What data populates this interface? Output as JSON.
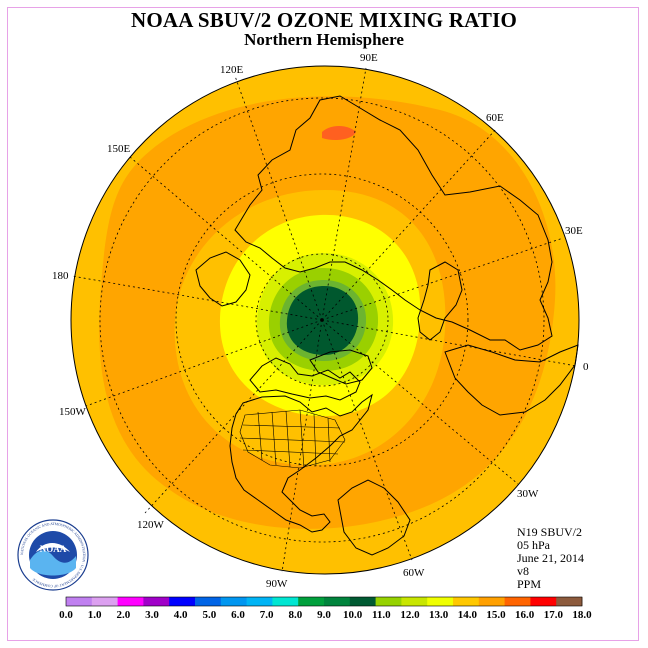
{
  "title": "NOAA SBUV/2 OZONE MIXING RATIO",
  "subtitle": "Northern Hemisphere",
  "info": {
    "instrument": "N19 SBUV/2",
    "pressure": "05 hPa",
    "date": "June 21, 2014",
    "version": "v8",
    "units": "PPM"
  },
  "longitude_labels": {
    "e90": "90E",
    "e60": "60E",
    "e30": "30E",
    "zero": "0",
    "w30": "30W",
    "w60": "60W",
    "w90": "90W",
    "w120": "120W",
    "w150": "150W",
    "l180": "180",
    "e150": "150E",
    "e120": "120E"
  },
  "logo": {
    "text": "NOAA",
    "ring_text": "NATIONAL OCEANIC AND ATMOSPHERIC ADMINISTRATION · U.S. DEPARTMENT OF COMMERCE"
  },
  "colorbar": {
    "colors": [
      "#c080f0",
      "#dca0f0",
      "#ff00ff",
      "#a000c8",
      "#0000ff",
      "#0064e6",
      "#0096f0",
      "#00b4f5",
      "#00e6d2",
      "#00a03c",
      "#00843c",
      "#005a32",
      "#96d200",
      "#c8e600",
      "#f0ff00",
      "#ffc800",
      "#ffa000",
      "#ff6400",
      "#ff0000",
      "#8c5a3c"
    ],
    "ticks": [
      "0.0",
      "1.0",
      "2.0",
      "3.0",
      "4.0",
      "5.0",
      "6.0",
      "7.0",
      "8.0",
      "9.0",
      "10.0",
      "11.0",
      "12.0",
      "13.0",
      "14.0",
      "15.0",
      "16.0",
      "17.0",
      "18.0"
    ]
  },
  "map_colors": {
    "outer": "#ffc000",
    "band": "#ffa500",
    "hotspot": "#ff6020",
    "ring13": "#ffc000",
    "ring12": "#ffff00",
    "ring11": "#d8f000",
    "ring10": "#9ad000",
    "ring9": "#6cb430",
    "core": "#00582e"
  }
}
